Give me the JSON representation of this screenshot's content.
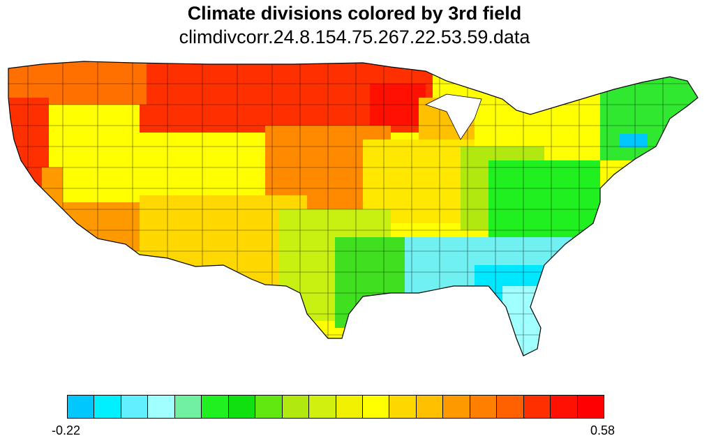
{
  "map": {
    "title": "Climate divisions colored by 3rd field",
    "subtitle": "climdivcorr.24.8.154.75.267.22.53.59.data",
    "outline_color": "#000000",
    "water_color": "#ffffff"
  },
  "colorbar": {
    "min_label": "-0.22",
    "max_label": "0.58",
    "colors": [
      "#00c8ff",
      "#00f0ff",
      "#60f0ff",
      "#a0ffff",
      "#70f0a0",
      "#20f020",
      "#10e010",
      "#60e810",
      "#b0e810",
      "#d0f010",
      "#f0f000",
      "#ffff00",
      "#ffd800",
      "#ffc000",
      "#ff9900",
      "#ff8000",
      "#ff6000",
      "#ff3000",
      "#ff1000",
      "#ff0000"
    ]
  }
}
